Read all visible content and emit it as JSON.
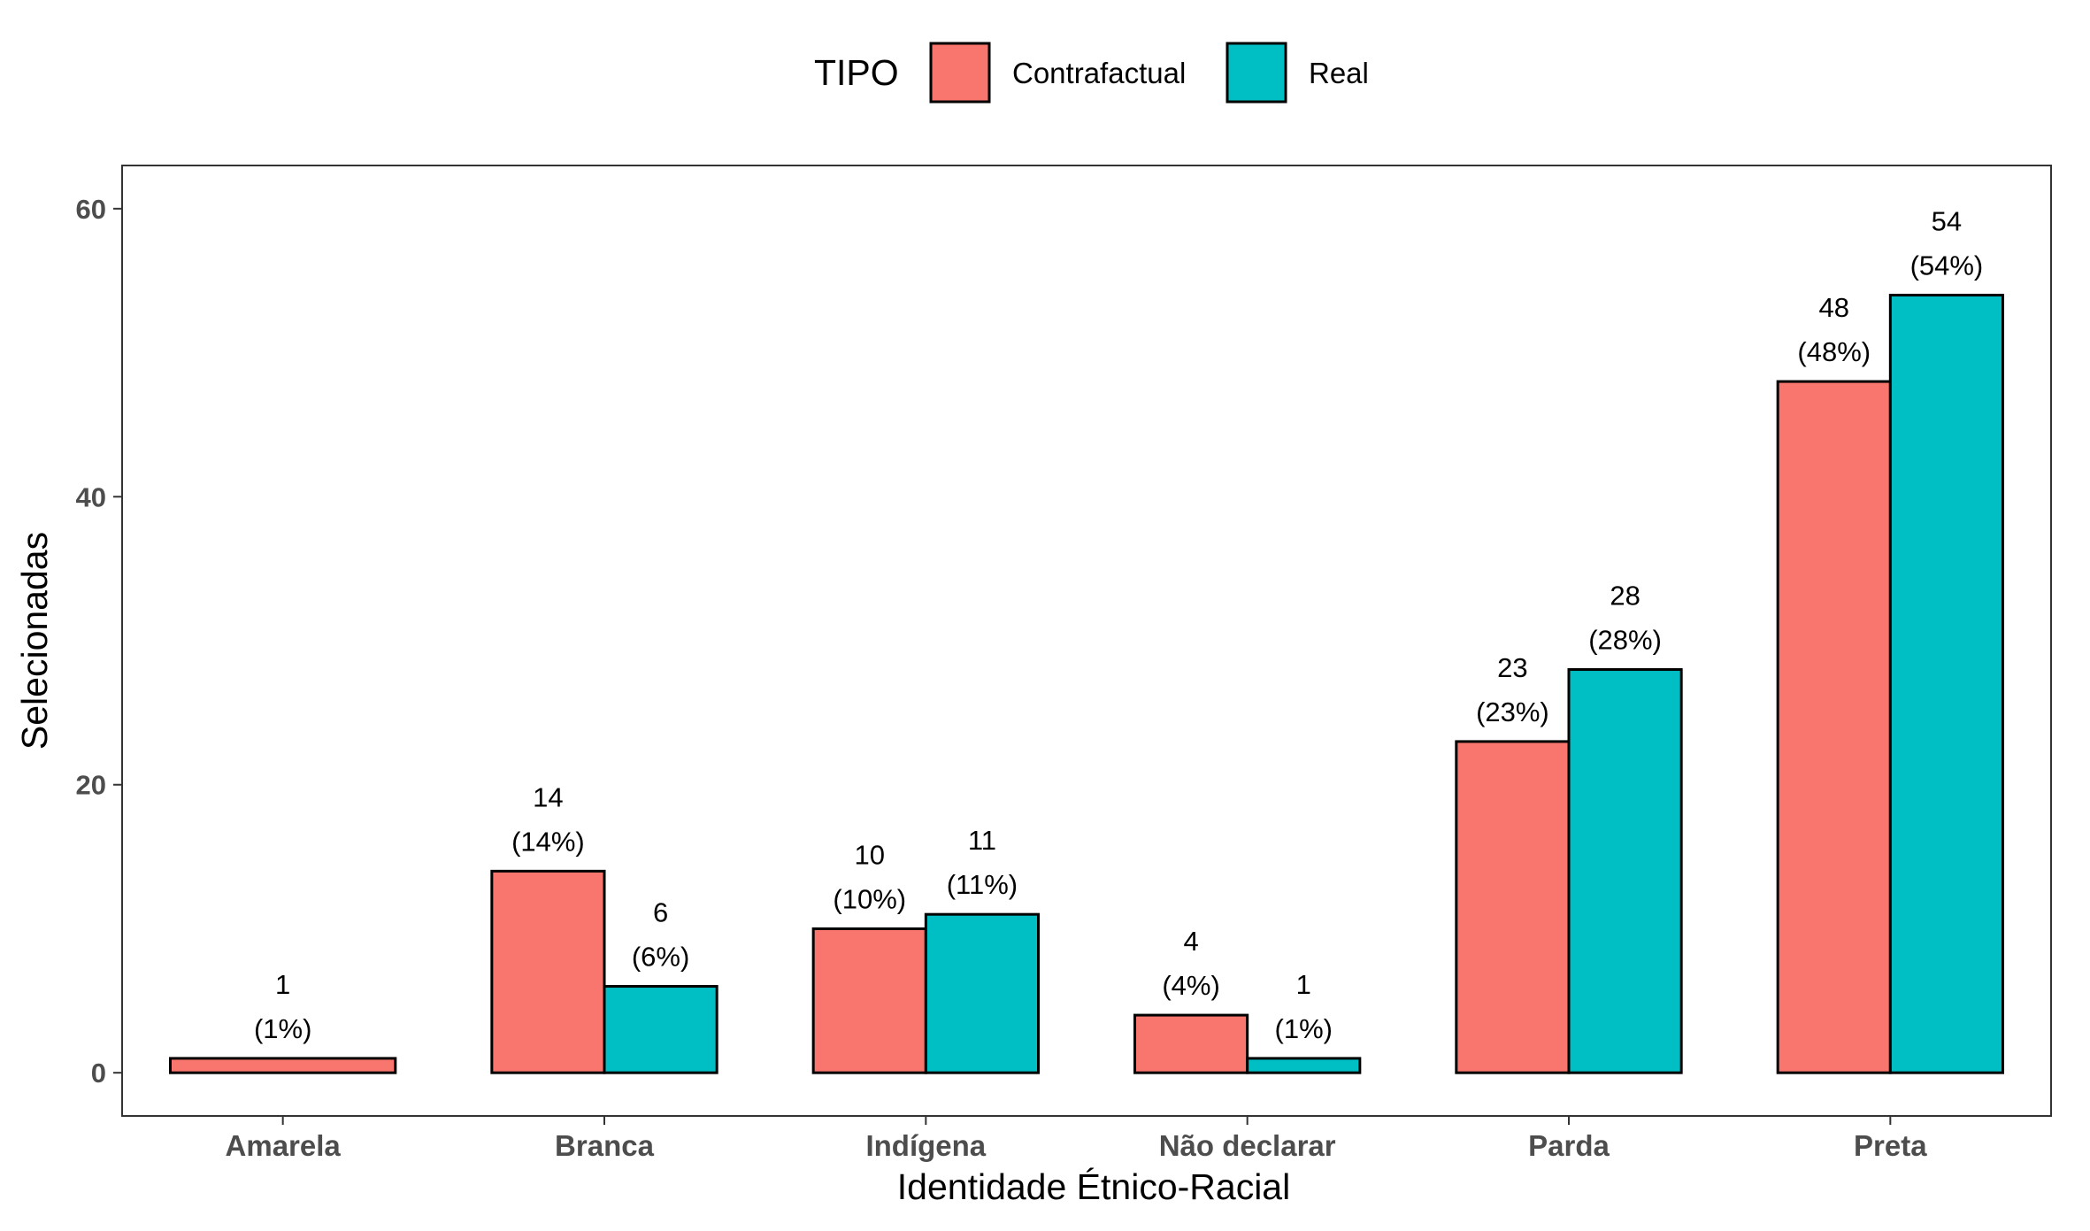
{
  "chart_data": {
    "type": "bar",
    "categories": [
      "Amarela",
      "Branca",
      "Indígena",
      "Não declarar",
      "Parda",
      "Preta"
    ],
    "series": [
      {
        "name": "Contrafactual",
        "color": "#F8766D",
        "values": [
          1,
          14,
          10,
          4,
          23,
          48
        ],
        "labels": [
          "(1%)",
          "(14%)",
          "(10%)",
          "(4%)",
          "(23%)",
          "(48%)"
        ]
      },
      {
        "name": "Real",
        "color": "#00BFC4",
        "values": [
          null,
          6,
          11,
          1,
          28,
          54
        ],
        "labels": [
          null,
          "(6%)",
          "(11%)",
          "(1%)",
          "(28%)",
          "(54%)"
        ]
      }
    ],
    "legend_title": "TIPO",
    "legend_position": "top",
    "xlabel": "Identidade Étnico-Racial",
    "ylabel": "Selecionadas",
    "ylim": [
      -3,
      63
    ],
    "yticks": [
      0,
      20,
      40,
      60
    ],
    "grid": false
  }
}
